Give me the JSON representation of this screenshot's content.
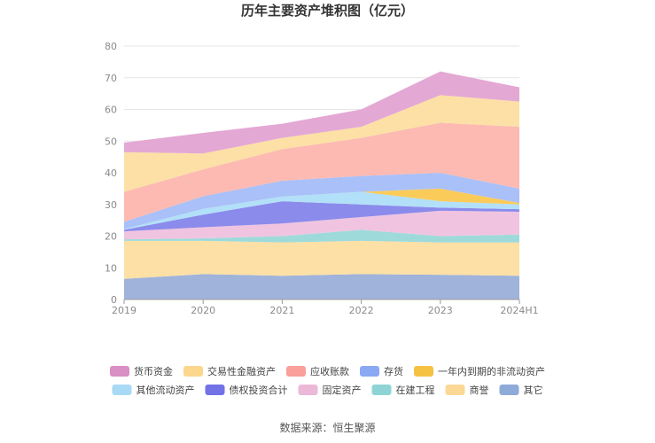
{
  "chart_data": {
    "type": "area",
    "stacked": true,
    "title": "历年主要资产堆积图（亿元）",
    "x": [
      "2019",
      "2020",
      "2021",
      "2022",
      "2023",
      "2024H1"
    ],
    "ylim": [
      0,
      80
    ],
    "yticks": [
      0,
      10,
      20,
      30,
      40,
      50,
      60,
      70,
      80
    ],
    "grid": true,
    "legend_position": "bottom",
    "source": "数据来源：恒生聚源",
    "series": [
      {
        "name": "其它",
        "color": "#9fb3db",
        "values": [
          6.5,
          8.0,
          7.5,
          8.0,
          7.8,
          7.5
        ]
      },
      {
        "name": "商誉",
        "color": "#fce0a6",
        "values": [
          12.0,
          10.5,
          10.5,
          10.5,
          10.2,
          10.5
        ]
      },
      {
        "name": "在建工程",
        "color": "#9fdada",
        "values": [
          0.5,
          0.8,
          2.0,
          3.5,
          2.0,
          2.5
        ]
      },
      {
        "name": "固定资产",
        "color": "#f0c4e0",
        "values": [
          2.5,
          3.5,
          4.0,
          4.0,
          8.0,
          7.2
        ]
      },
      {
        "name": "债权投资合计",
        "color": "#8b8bec",
        "values": [
          0.5,
          4.0,
          7.0,
          4.0,
          1.0,
          0.8
        ]
      },
      {
        "name": "其他流动资产",
        "color": "#b2e0f8",
        "values": [
          0.2,
          1.8,
          1.5,
          4.0,
          2.0,
          1.5
        ]
      },
      {
        "name": "一年内到期的非流动资产",
        "color": "#fbcb5a",
        "values": [
          0.0,
          0.0,
          0.0,
          0.0,
          4.0,
          0.5
        ]
      },
      {
        "name": "存货",
        "color": "#aac0f8",
        "values": [
          2.3,
          4.0,
          5.0,
          5.0,
          5.0,
          4.5
        ]
      },
      {
        "name": "应收账款",
        "color": "#fcbab2",
        "values": [
          9.5,
          8.5,
          10.0,
          12.0,
          15.8,
          19.5
        ]
      },
      {
        "name": "交易性金融资产",
        "color": "#fce0a6",
        "values": [
          12.5,
          5.0,
          3.5,
          3.5,
          8.7,
          8.0
        ]
      },
      {
        "name": "货币资金",
        "color": "#e4a8d4",
        "values": [
          3.0,
          6.5,
          4.5,
          5.5,
          7.5,
          4.5
        ]
      }
    ],
    "legend_order": [
      "货币资金",
      "交易性金融资产",
      "应收账款",
      "存货",
      "一年内到期的非流动资产",
      "其他流动资产",
      "债权投资合计",
      "固定资产",
      "在建工程",
      "商誉",
      "其它"
    ],
    "legend_swatch_colors": {
      "货币资金": "#d98ec4",
      "交易性金融资产": "#fbd68d",
      "应收账款": "#f8a099",
      "存货": "#8aa8f4",
      "一年内到期的非流动资产": "#f6c243",
      "其他流动资产": "#a8daf6",
      "债权投资合计": "#7272e6",
      "固定资产": "#ebb8d8",
      "在建工程": "#8ed4d4",
      "商誉": "#fcd896",
      "其它": "#8eaad8"
    }
  }
}
